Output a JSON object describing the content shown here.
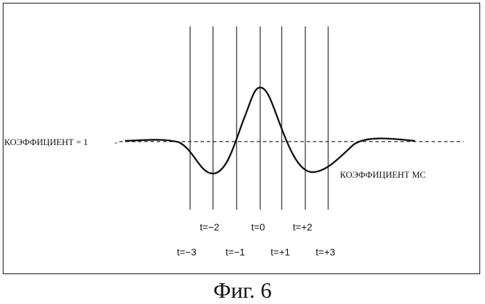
{
  "figure": {
    "caption": "Фиг. 6",
    "reference_label": "КОЭФФИЦИЕНТ = 1",
    "curve_label": "КОЭФФИЦИЕНТ МС",
    "time_labels": {
      "t_minus_3": "t=−3",
      "t_minus_2": "t=−2",
      "t_minus_1": "t=−1",
      "t_0": "t=0",
      "t_plus_1": "t=+1",
      "t_plus_2": "t=+2",
      "t_plus_3": "t=+3"
    }
  }
}
